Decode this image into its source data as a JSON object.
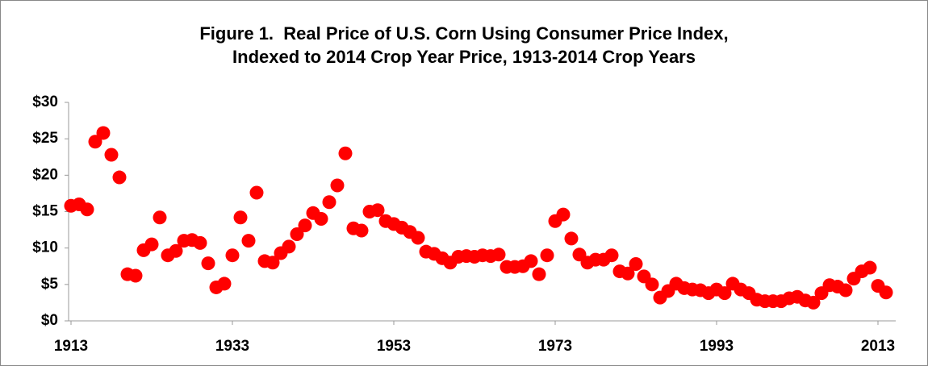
{
  "chart_data": {
    "type": "scatter",
    "title": [
      "Figure 1.  Real Price of U.S. Corn Using Consumer Price Index,",
      "Indexed to 2014 Crop Year Price, 1913-2014 Crop Years"
    ],
    "color": "#ff0000",
    "x": [
      1913,
      1914,
      1915,
      1916,
      1917,
      1918,
      1919,
      1920,
      1921,
      1922,
      1923,
      1924,
      1925,
      1926,
      1927,
      1928,
      1929,
      1930,
      1931,
      1932,
      1933,
      1934,
      1935,
      1936,
      1937,
      1938,
      1939,
      1940,
      1941,
      1942,
      1943,
      1944,
      1945,
      1946,
      1947,
      1948,
      1949,
      1950,
      1951,
      1952,
      1953,
      1954,
      1955,
      1956,
      1957,
      1958,
      1959,
      1960,
      1961,
      1962,
      1963,
      1964,
      1965,
      1966,
      1967,
      1968,
      1969,
      1970,
      1971,
      1972,
      1973,
      1974,
      1975,
      1976,
      1977,
      1978,
      1979,
      1980,
      1981,
      1982,
      1983,
      1984,
      1985,
      1986,
      1987,
      1988,
      1989,
      1990,
      1991,
      1992,
      1993,
      1994,
      1995,
      1996,
      1997,
      1998,
      1999,
      2000,
      2001,
      2002,
      2003,
      2004,
      2005,
      2006,
      2007,
      2008,
      2009,
      2010,
      2011,
      2012,
      2013,
      2014
    ],
    "values": [
      15.8,
      16.0,
      15.3,
      24.6,
      25.8,
      22.8,
      19.7,
      6.4,
      6.2,
      9.7,
      10.5,
      14.2,
      9.0,
      9.6,
      11.0,
      11.1,
      10.7,
      7.9,
      4.6,
      5.1,
      9.0,
      14.2,
      11.0,
      17.6,
      8.2,
      8.0,
      9.3,
      10.2,
      11.9,
      13.1,
      14.8,
      14.0,
      16.3,
      18.6,
      23.0,
      12.7,
      12.4,
      15.0,
      15.2,
      13.7,
      13.3,
      12.8,
      12.2,
      11.4,
      9.5,
      9.2,
      8.6,
      8.0,
      8.8,
      8.9,
      8.8,
      9.0,
      8.9,
      9.1,
      7.4,
      7.4,
      7.5,
      8.2,
      6.4,
      9.0,
      13.7,
      14.6,
      11.3,
      9.1,
      8.0,
      8.4,
      8.4,
      9.0,
      6.8,
      6.5,
      7.8,
      6.1,
      5.0,
      3.2,
      4.1,
      5.1,
      4.5,
      4.3,
      4.2,
      3.8,
      4.3,
      3.8,
      5.1,
      4.3,
      3.8,
      2.9,
      2.7,
      2.7,
      2.7,
      3.1,
      3.3,
      2.8,
      2.5,
      3.8,
      4.9,
      4.7,
      4.2,
      5.8,
      6.8,
      7.3,
      4.8,
      3.9
    ],
    "xlim": [
      1913,
      2014
    ],
    "xticks": [
      1913,
      1933,
      1953,
      1973,
      1993,
      2013
    ],
    "ylim": [
      0,
      30
    ],
    "yticks": [
      {
        "value": 0,
        "label": "$0"
      },
      {
        "value": 5,
        "label": "$5"
      },
      {
        "value": 10,
        "label": "$10"
      },
      {
        "value": 15,
        "label": "$15"
      },
      {
        "value": 20,
        "label": "$20"
      },
      {
        "value": 25,
        "label": "$25"
      },
      {
        "value": 30,
        "label": "$30"
      }
    ],
    "grid": false
  }
}
